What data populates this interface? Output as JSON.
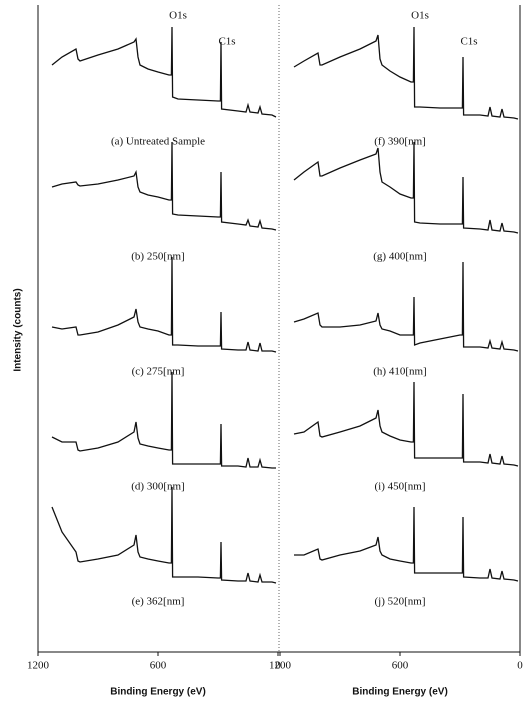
{
  "chart_data": [
    {
      "type": "line",
      "xlabel": "Binding Energy (eV)",
      "ylabel": "Intensity (counts)",
      "color": "#111111",
      "xlim": [
        1200,
        0
      ],
      "xticks": [
        1200,
        600,
        0
      ],
      "ylim": [
        0,
        100
      ],
      "annotations": [
        {
          "text": "O1s",
          "x": 530
        },
        {
          "text": "C1s",
          "x": 285
        }
      ],
      "x": [
        1130,
        1080,
        1010,
        1000,
        990,
        900,
        800,
        720,
        710,
        700,
        690,
        650,
        600,
        545,
        533,
        530,
        527,
        500,
        400,
        300,
        288,
        285,
        282,
        200,
        160,
        150,
        140,
        100,
        90,
        80,
        30,
        10
      ],
      "series": [
        {
          "name": "(a) Untreated Sample",
          "values": [
            62,
            70,
            78,
            68,
            66,
            72,
            78,
            85,
            88,
            70,
            62,
            58,
            55,
            52,
            52,
            100,
            30,
            28,
            27,
            26,
            26,
            85,
            18,
            16,
            15,
            22,
            15,
            14,
            20,
            13,
            12,
            10
          ]
        },
        {
          "name": "(b) 250[nm]",
          "values": [
            55,
            58,
            60,
            57,
            56,
            58,
            62,
            66,
            70,
            55,
            50,
            47,
            45,
            42,
            42,
            100,
            28,
            27,
            26,
            25,
            25,
            70,
            20,
            18,
            17,
            22,
            16,
            15,
            21,
            14,
            13,
            12
          ]
        },
        {
          "name": "(c) 275[nm]",
          "values": [
            30,
            28,
            30,
            22,
            22,
            25,
            32,
            40,
            48,
            35,
            30,
            28,
            26,
            22,
            22,
            100,
            12,
            12,
            11,
            11,
            11,
            45,
            8,
            7,
            7,
            15,
            7,
            6,
            14,
            6,
            6,
            5
          ]
        },
        {
          "name": "(d) 300[nm]",
          "values": [
            35,
            30,
            30,
            22,
            21,
            24,
            30,
            40,
            50,
            34,
            28,
            26,
            24,
            22,
            22,
            100,
            8,
            8,
            8,
            8,
            8,
            48,
            6,
            6,
            5,
            14,
            5,
            5,
            12,
            5,
            4,
            4
          ]
        },
        {
          "name": "(e) 362[nm]",
          "values": [
            80,
            55,
            35,
            26,
            25,
            28,
            32,
            42,
            52,
            35,
            30,
            28,
            26,
            24,
            24,
            100,
            10,
            10,
            10,
            9,
            9,
            45,
            7,
            6,
            6,
            14,
            6,
            5,
            12,
            5,
            5,
            4
          ]
        }
      ]
    },
    {
      "type": "line",
      "xlabel": "Binding Energy (eV)",
      "color": "#111111",
      "xlim": [
        1200,
        0
      ],
      "xticks": [
        1200,
        600,
        0
      ],
      "ylim": [
        0,
        100
      ],
      "annotations": [
        {
          "text": "O1s",
          "x": 530
        },
        {
          "text": "C1s",
          "x": 285
        }
      ],
      "x": [
        1130,
        1080,
        1010,
        1000,
        990,
        900,
        800,
        720,
        710,
        700,
        690,
        650,
        600,
        545,
        533,
        530,
        527,
        500,
        400,
        300,
        288,
        285,
        282,
        200,
        160,
        150,
        140,
        100,
        90,
        80,
        30,
        10
      ],
      "series": [
        {
          "name": "(f) 390[nm]",
          "values": [
            60,
            66,
            74,
            62,
            62,
            70,
            78,
            86,
            92,
            68,
            62,
            56,
            50,
            45,
            45,
            100,
            20,
            20,
            19,
            19,
            19,
            70,
            12,
            12,
            11,
            20,
            11,
            10,
            18,
            10,
            9,
            8
          ]
        },
        {
          "name": "(g) 400[nm]",
          "values": [
            62,
            70,
            80,
            66,
            66,
            74,
            82,
            88,
            94,
            70,
            60,
            55,
            48,
            44,
            44,
            100,
            20,
            19,
            18,
            18,
            18,
            65,
            14,
            13,
            12,
            22,
            12,
            11,
            19,
            11,
            10,
            9
          ]
        },
        {
          "name": "(h) 410[nm]",
          "values": [
            35,
            38,
            44,
            32,
            30,
            30,
            32,
            36,
            44,
            32,
            28,
            26,
            22,
            22,
            22,
            60,
            12,
            14,
            18,
            22,
            22,
            95,
            10,
            10,
            9,
            16,
            9,
            8,
            15,
            8,
            7,
            6
          ]
        },
        {
          "name": "(i) 450[nm]",
          "values": [
            38,
            40,
            50,
            36,
            35,
            40,
            46,
            54,
            62,
            46,
            40,
            36,
            32,
            30,
            30,
            90,
            14,
            14,
            14,
            14,
            14,
            78,
            10,
            10,
            9,
            18,
            9,
            8,
            16,
            8,
            7,
            6
          ]
        },
        {
          "name": "(j) 520[nm]",
          "values": [
            32,
            32,
            38,
            28,
            27,
            32,
            36,
            42,
            50,
            36,
            32,
            28,
            26,
            24,
            24,
            80,
            14,
            14,
            14,
            14,
            14,
            70,
            10,
            9,
            9,
            18,
            9,
            8,
            16,
            8,
            7,
            6
          ]
        }
      ]
    }
  ]
}
